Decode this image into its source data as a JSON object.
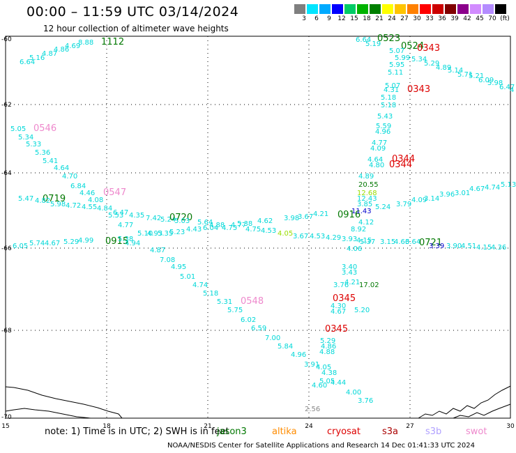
{
  "title": "00:00 – 11:59 UTC 03/14/2024",
  "subtitle": "12 hour collection of altimeter wave heights",
  "colorbar": {
    "colors": [
      "#7f7f7f",
      "#00e5ff",
      "#00aaff",
      "#0000ff",
      "#00cc66",
      "#00b300",
      "#007f00",
      "#ffff00",
      "#ffc400",
      "#ff8000",
      "#ff0000",
      "#cc0000",
      "#800000",
      "#8b008b",
      "#d28cff",
      "#b48cff",
      "#000000"
    ],
    "labels": [
      "3",
      "6",
      "9",
      "12",
      "15",
      "18",
      "21",
      "24",
      "27",
      "30",
      "33",
      "36",
      "39",
      "42",
      "45",
      "70",
      "(ft)"
    ]
  },
  "axes": {
    "x_ticks": [
      "15",
      "18",
      "21",
      "24",
      "27",
      "30"
    ],
    "y_ticks": [
      "-60",
      "-62",
      "-64",
      "-66",
      "-68",
      "-70"
    ]
  },
  "colors": {
    "cyan": "#00d8d8",
    "green": "#007700",
    "red": "#dd0000",
    "pink": "#ee88cc",
    "gray": "#888888",
    "lime": "#99dd00",
    "blue": "#0000cc"
  },
  "wave_labels": [
    {
      "t": "6.64",
      "c": "cyan"
    },
    {
      "t": "5.16",
      "c": "cyan"
    },
    {
      "t": "4.87",
      "c": "cyan"
    },
    {
      "t": "4.86",
      "c": "cyan"
    },
    {
      "t": "4.69",
      "c": "cyan"
    },
    {
      "t": "8.88",
      "c": "cyan"
    },
    {
      "t": "1112",
      "c": "green"
    },
    {
      "t": "6.64",
      "c": "cyan"
    },
    {
      "t": "5.19",
      "c": "cyan"
    },
    {
      "t": "0523",
      "c": "green"
    },
    {
      "t": "0524",
      "c": "green"
    },
    {
      "t": "0343",
      "c": "red"
    },
    {
      "t": "5.07",
      "c": "cyan"
    },
    {
      "t": "5.99",
      "c": "cyan"
    },
    {
      "t": "5.34",
      "c": "cyan"
    },
    {
      "t": "5.95",
      "c": "cyan"
    },
    {
      "t": "5.11",
      "c": "cyan"
    },
    {
      "t": "5.29",
      "c": "cyan"
    },
    {
      "t": "4.89",
      "c": "cyan"
    },
    {
      "t": "5.14",
      "c": "cyan"
    },
    {
      "t": "5.71",
      "c": "cyan"
    },
    {
      "t": "5.21",
      "c": "cyan"
    },
    {
      "t": "6.09",
      "c": "cyan"
    },
    {
      "t": "5.98",
      "c": "cyan"
    },
    {
      "t": "6.47",
      "c": "cyan"
    },
    {
      "t": "4",
      "c": "cyan"
    },
    {
      "t": "5.07",
      "c": "cyan"
    },
    {
      "t": "4.31",
      "c": "cyan"
    },
    {
      "t": "0343",
      "c": "red"
    },
    {
      "t": "5.18",
      "c": "cyan"
    },
    {
      "t": "5.18",
      "c": "cyan"
    },
    {
      "t": "5.43",
      "c": "cyan"
    },
    {
      "t": "5.59",
      "c": "cyan"
    },
    {
      "t": "4.96",
      "c": "cyan"
    },
    {
      "t": "4.77",
      "c": "cyan"
    },
    {
      "t": "4.09",
      "c": "cyan"
    },
    {
      "t": "4.64",
      "c": "cyan"
    },
    {
      "t": "0344",
      "c": "red"
    },
    {
      "t": "4.80",
      "c": "cyan"
    },
    {
      "t": "0344",
      "c": "red"
    },
    {
      "t": "5.05",
      "c": "cyan"
    },
    {
      "t": "0546",
      "c": "pink"
    },
    {
      "t": "5.34",
      "c": "cyan"
    },
    {
      "t": "5.33",
      "c": "cyan"
    },
    {
      "t": "5.36",
      "c": "cyan"
    },
    {
      "t": "5.41",
      "c": "cyan"
    },
    {
      "t": "4.64",
      "c": "cyan"
    },
    {
      "t": "4.70",
      "c": "cyan"
    },
    {
      "t": "6.84",
      "c": "cyan"
    },
    {
      "t": "4.46",
      "c": "cyan"
    },
    {
      "t": "0547",
      "c": "pink"
    },
    {
      "t": "5.47",
      "c": "cyan"
    },
    {
      "t": "0719",
      "c": "green"
    },
    {
      "t": "4.82",
      "c": "cyan"
    },
    {
      "t": "5.98",
      "c": "cyan"
    },
    {
      "t": "4.72",
      "c": "cyan"
    },
    {
      "t": "4.55",
      "c": "cyan"
    },
    {
      "t": "4.84",
      "c": "cyan"
    },
    {
      "t": "4.08",
      "c": "cyan"
    },
    {
      "t": "5.53",
      "c": "cyan"
    },
    {
      "t": "6.47",
      "c": "cyan"
    },
    {
      "t": "4.35",
      "c": "cyan"
    },
    {
      "t": "7.42",
      "c": "cyan"
    },
    {
      "t": "5.24",
      "c": "cyan"
    },
    {
      "t": "0720",
      "c": "green"
    },
    {
      "t": "5.03",
      "c": "cyan"
    },
    {
      "t": "5.64",
      "c": "cyan"
    },
    {
      "t": "4.77",
      "c": "cyan"
    },
    {
      "t": "4.88",
      "c": "cyan"
    },
    {
      "t": "5.38",
      "c": "cyan"
    },
    {
      "t": "4.62",
      "c": "cyan"
    },
    {
      "t": "3.98",
      "c": "cyan"
    },
    {
      "t": "3.67",
      "c": "cyan"
    },
    {
      "t": "4.21",
      "c": "cyan"
    },
    {
      "t": "4.75",
      "c": "cyan"
    },
    {
      "t": "4.77",
      "c": "cyan"
    },
    {
      "t": "4.75",
      "c": "cyan"
    },
    {
      "t": "4.53",
      "c": "cyan"
    },
    {
      "t": "4.89",
      "c": "cyan"
    },
    {
      "t": "20.55",
      "c": "green"
    },
    {
      "t": "12.68",
      "c": "lime"
    },
    {
      "t": "5.24",
      "c": "cyan"
    },
    {
      "t": "12.43",
      "c": "cyan"
    },
    {
      "t": "3.85",
      "c": "cyan"
    },
    {
      "t": "0916",
      "c": "green"
    },
    {
      "t": "11.43",
      "c": "blue"
    },
    {
      "t": "4.12",
      "c": "cyan"
    },
    {
      "t": "3.79",
      "c": "cyan"
    },
    {
      "t": "4.09",
      "c": "cyan"
    },
    {
      "t": "3.14",
      "c": "cyan"
    },
    {
      "t": "3.96",
      "c": "cyan"
    },
    {
      "t": "3.01",
      "c": "cyan"
    },
    {
      "t": "4.67",
      "c": "cyan"
    },
    {
      "t": "4.74",
      "c": "cyan"
    },
    {
      "t": "5.13",
      "c": "cyan"
    },
    {
      "t": "6.05",
      "c": "cyan"
    },
    {
      "t": "5.74",
      "c": "cyan"
    },
    {
      "t": "4.67",
      "c": "cyan"
    },
    {
      "t": "5.29",
      "c": "cyan"
    },
    {
      "t": "4.99",
      "c": "cyan"
    },
    {
      "t": "0915",
      "c": "green"
    },
    {
      "t": "5.38",
      "c": "cyan"
    },
    {
      "t": "4.94",
      "c": "cyan"
    },
    {
      "t": "5.10",
      "c": "cyan"
    },
    {
      "t": "4.93",
      "c": "cyan"
    },
    {
      "t": "5.35",
      "c": "cyan"
    },
    {
      "t": "5.23",
      "c": "cyan"
    },
    {
      "t": "4.43",
      "c": "cyan"
    },
    {
      "t": "6.04",
      "c": "cyan"
    },
    {
      "t": "4.05",
      "c": "lime"
    },
    {
      "t": "3.67",
      "c": "cyan"
    },
    {
      "t": "4.53",
      "c": "cyan"
    },
    {
      "t": "4.29",
      "c": "cyan"
    },
    {
      "t": "3.93",
      "c": "cyan"
    },
    {
      "t": "4.15",
      "c": "cyan"
    },
    {
      "t": "8.92",
      "c": "cyan"
    },
    {
      "t": "5.37",
      "c": "cyan"
    },
    {
      "t": "3.15",
      "c": "cyan"
    },
    {
      "t": "4.66",
      "c": "cyan"
    },
    {
      "t": "3.64",
      "c": "cyan"
    },
    {
      "t": "0721",
      "c": "green"
    },
    {
      "t": "3.39",
      "c": "blue"
    },
    {
      "t": "3.90",
      "c": "cyan"
    },
    {
      "t": "4.51",
      "c": "cyan"
    },
    {
      "t": "4.15",
      "c": "cyan"
    },
    {
      "t": "4.36",
      "c": "cyan"
    },
    {
      "t": "4.06",
      "c": "cyan"
    },
    {
      "t": "4.87",
      "c": "cyan"
    },
    {
      "t": "7.08",
      "c": "cyan"
    },
    {
      "t": "4.95",
      "c": "cyan"
    },
    {
      "t": "5.01",
      "c": "cyan"
    },
    {
      "t": "4.74",
      "c": "cyan"
    },
    {
      "t": "5.18",
      "c": "cyan"
    },
    {
      "t": "5.31",
      "c": "cyan"
    },
    {
      "t": "0548",
      "c": "pink"
    },
    {
      "t": "5.75",
      "c": "cyan"
    },
    {
      "t": "6.02",
      "c": "cyan"
    },
    {
      "t": "6.59",
      "c": "cyan"
    },
    {
      "t": "7.00",
      "c": "cyan"
    },
    {
      "t": "5.84",
      "c": "cyan"
    },
    {
      "t": "4.96",
      "c": "cyan"
    },
    {
      "t": "3.91",
      "c": "cyan"
    },
    {
      "t": "4.05",
      "c": "cyan"
    },
    {
      "t": "4.38",
      "c": "cyan"
    },
    {
      "t": "5.05",
      "c": "cyan"
    },
    {
      "t": "4.60",
      "c": "cyan"
    },
    {
      "t": "4.44",
      "c": "cyan"
    },
    {
      "t": "4.00",
      "c": "cyan"
    },
    {
      "t": "3.76",
      "c": "cyan"
    },
    {
      "t": "2.56",
      "c": "gray"
    },
    {
      "t": "3.40",
      "c": "cyan"
    },
    {
      "t": "3.43",
      "c": "cyan"
    },
    {
      "t": "4.21",
      "c": "cyan"
    },
    {
      "t": "3.76",
      "c": "cyan"
    },
    {
      "t": "17.02",
      "c": "green"
    },
    {
      "t": "0345",
      "c": "red"
    },
    {
      "t": "4.30",
      "c": "cyan"
    },
    {
      "t": "4.67",
      "c": "cyan"
    },
    {
      "t": "5.20",
      "c": "cyan"
    },
    {
      "t": "0345",
      "c": "red"
    },
    {
      "t": "5.29",
      "c": "cyan"
    },
    {
      "t": "4.86",
      "c": "cyan"
    },
    {
      "t": "4.88",
      "c": "cyan"
    },
    {
      "t": "4.84",
      "c": "cyan"
    }
  ],
  "note": {
    "text": "note:  1) Time is in UTC; 2) SWH is in feet",
    "legend": [
      {
        "name": "jason3",
        "color": "#007700"
      },
      {
        "name": "altika",
        "color": "#ff8c00"
      },
      {
        "name": "cryosat",
        "color": "#dd0000"
      },
      {
        "name": "s3a",
        "color": "#aa0000"
      },
      {
        "name": "s3b",
        "color": "#b0a0ff"
      },
      {
        "name": "swot",
        "color": "#ee88cc"
      }
    ]
  },
  "footer": "NOAA/NESDIS Center for Satellite Applications and Research    14 Dec 01:41:33 UTC 2024"
}
